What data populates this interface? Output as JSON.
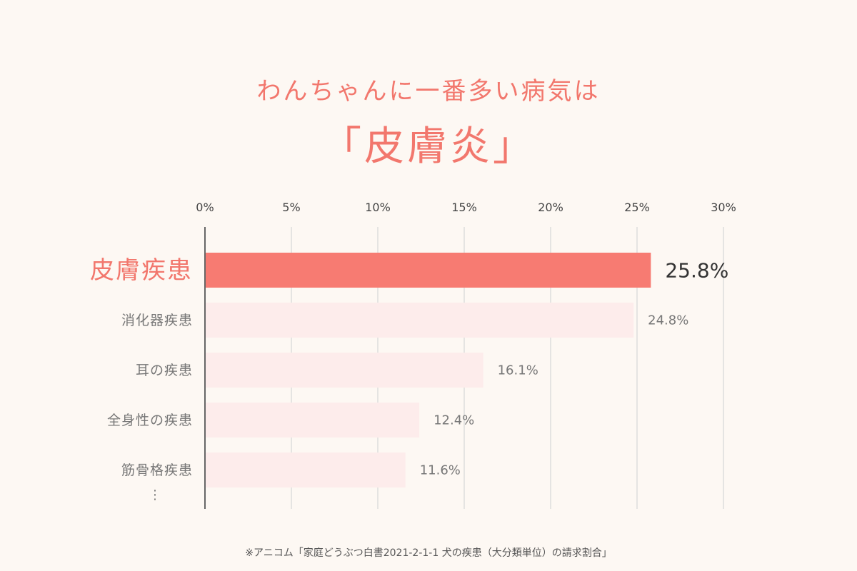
{
  "title_line1": "わんちゃんに一番多い病気は",
  "title_line2": "「皮膚炎」",
  "source": "※アニコム「家庭どうぶつ白書2021-2-1-1 犬の疾患（大分類単位）の請求割合」",
  "chart_data": {
    "type": "bar",
    "orientation": "horizontal",
    "categories": [
      "皮膚疾患",
      "消化器疾患",
      "耳の疾患",
      "全身性の疾患",
      "筋骨格疾患"
    ],
    "values": [
      25.8,
      24.8,
      16.1,
      12.4,
      11.6
    ],
    "value_labels": [
      "25.8%",
      "24.8%",
      "16.1%",
      "12.4%",
      "11.6%"
    ],
    "xlim": [
      0,
      30
    ],
    "xticks": [
      0,
      5,
      10,
      15,
      20,
      25,
      30
    ],
    "xtick_labels": [
      "0%",
      "5%",
      "10%",
      "15%",
      "20%",
      "25%",
      "30%"
    ],
    "grid": true,
    "highlight_index": 0,
    "more_indicator": "⋮",
    "colors": {
      "highlight": "#f77b72",
      "normal": "#fdeceb",
      "highlight_text": "#f2776d",
      "label_text": "#777777",
      "grid": "#dddddd",
      "axis": "#666666"
    }
  }
}
